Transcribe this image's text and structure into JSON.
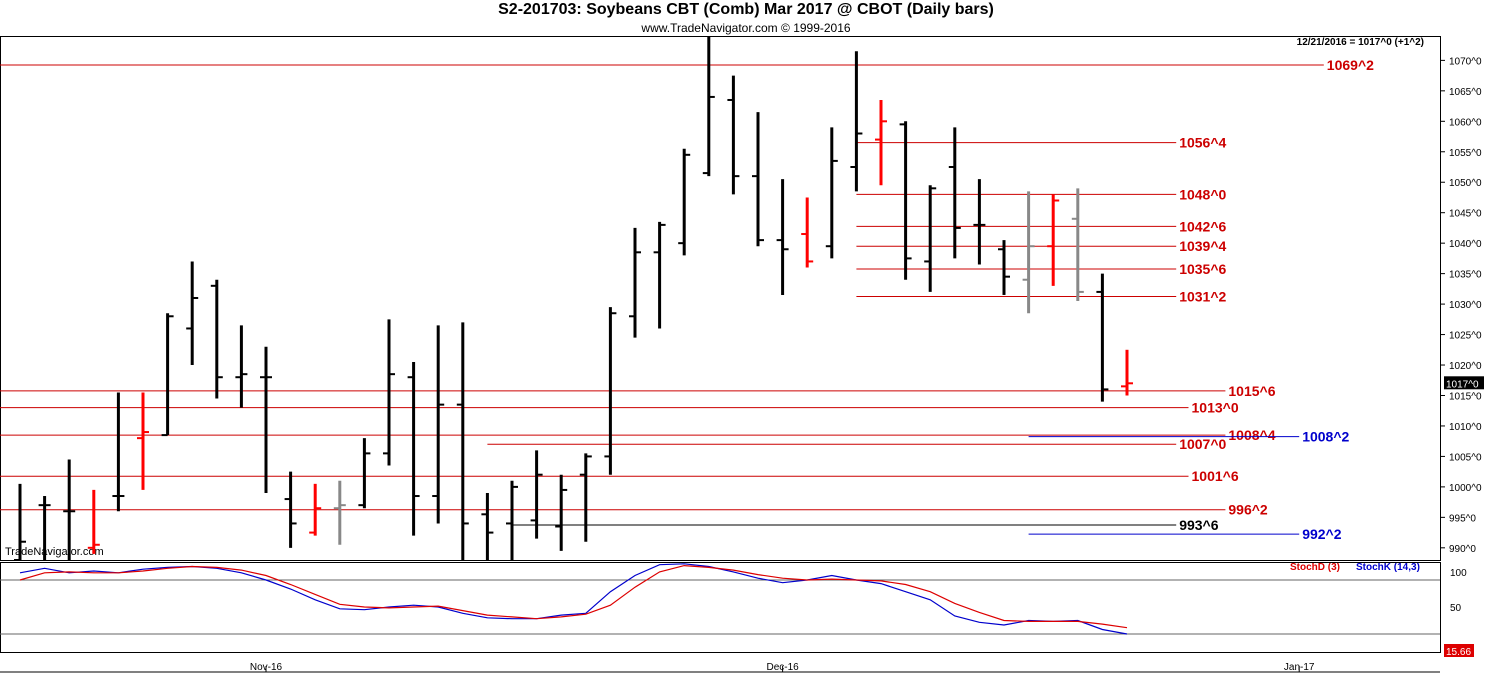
{
  "header": {
    "title": "S2-201703:  Soybeans CBT (Comb) Mar 2017 @ CBOT  (Daily bars)",
    "subtitle": "www.TradeNavigator.com © 1999-2016",
    "watermark": "TradeNavigator.com",
    "last_info": "12/21/2016 = 1017^0 (+1^2)"
  },
  "colors": {
    "price_up": "#000000",
    "price_red": "#ff0000",
    "price_gray": "#888888",
    "price_green": "#00dd00",
    "hline_red": "#cc0000",
    "hline_blue": "#0000cc",
    "stochD": "#dd0000",
    "stochK": "#0000cc"
  },
  "chart_data": {
    "type": "ohlc",
    "y_axis": {
      "min": 988,
      "max": 1074,
      "ticks": [
        "990^0",
        "995^0",
        "1000^0",
        "1005^0",
        "1010^0",
        "1015^0",
        "1020^0",
        "1025^0",
        "1030^0",
        "1035^0",
        "1040^0",
        "1045^0",
        "1050^0",
        "1055^0",
        "1060^0",
        "1065^0",
        "1070^0"
      ],
      "tick_values": [
        990,
        995,
        1000,
        1005,
        1010,
        1015,
        1020,
        1025,
        1030,
        1035,
        1040,
        1045,
        1050,
        1055,
        1060,
        1065,
        1070
      ],
      "last_price_label": "1017^0",
      "last_price": 1017
    },
    "x_axis": {
      "labels": [
        "Nov-16",
        "Dec-16",
        "Jan-17"
      ],
      "label_bar_index": [
        10,
        31,
        52
      ]
    },
    "bars": [
      {
        "o": 988,
        "h": 1000.5,
        "l": 988,
        "c": 991,
        "color": "black"
      },
      {
        "o": 997,
        "h": 998.5,
        "l": 988,
        "c": 997,
        "color": "black"
      },
      {
        "o": 996,
        "h": 1004.5,
        "l": 988,
        "c": 996,
        "color": "black"
      },
      {
        "o": 990,
        "h": 999.5,
        "l": 989,
        "c": 990.5,
        "color": "red"
      },
      {
        "o": 998.5,
        "h": 1015.5,
        "l": 996,
        "c": 998.5,
        "color": "black"
      },
      {
        "o": 1008,
        "h": 1015.5,
        "l": 999.5,
        "c": 1009,
        "color": "red"
      },
      {
        "o": 1008.5,
        "h": 1028.5,
        "l": 1008.5,
        "c": 1028,
        "color": "black"
      },
      {
        "o": 1026,
        "h": 1037,
        "l": 1020,
        "c": 1031,
        "color": "black"
      },
      {
        "o": 1033,
        "h": 1034,
        "l": 1014.5,
        "c": 1018,
        "color": "black"
      },
      {
        "o": 1018,
        "h": 1026.5,
        "l": 1013,
        "c": 1018.5,
        "color": "black"
      },
      {
        "o": 1018,
        "h": 1023,
        "l": 999,
        "c": 1018,
        "color": "black"
      },
      {
        "o": 998,
        "h": 1002.5,
        "l": 990,
        "c": 994,
        "color": "black"
      },
      {
        "o": 992.5,
        "h": 1000.5,
        "l": 992,
        "c": 996.5,
        "color": "red"
      },
      {
        "o": 996.5,
        "h": 1001,
        "l": 990.5,
        "c": 997,
        "color": "gray"
      },
      {
        "o": 997,
        "h": 1008,
        "l": 996.5,
        "c": 1005.5,
        "color": "black"
      },
      {
        "o": 1005.5,
        "h": 1027.5,
        "l": 1003.5,
        "c": 1018.5,
        "color": "black"
      },
      {
        "o": 1018,
        "h": 1020.5,
        "l": 992,
        "c": 998.5,
        "color": "black"
      },
      {
        "o": 998.5,
        "h": 1026.5,
        "l": 994,
        "c": 1013.5,
        "color": "black"
      },
      {
        "o": 1013.5,
        "h": 1027,
        "l": 988,
        "c": 994,
        "color": "black"
      },
      {
        "o": 995.5,
        "h": 999,
        "l": 988,
        "c": 992.5,
        "color": "black"
      },
      {
        "o": 994,
        "h": 1001,
        "l": 988,
        "c": 1000,
        "color": "black"
      },
      {
        "o": 994.5,
        "h": 1006,
        "l": 991.5,
        "c": 1002,
        "color": "black"
      },
      {
        "o": 993.5,
        "h": 1002,
        "l": 989.5,
        "c": 999.5,
        "color": "black"
      },
      {
        "o": 1002,
        "h": 1005.5,
        "l": 991,
        "c": 1005,
        "color": "black"
      },
      {
        "o": 1005,
        "h": 1029.5,
        "l": 1002,
        "c": 1028.5,
        "color": "black"
      },
      {
        "o": 1028,
        "h": 1042.5,
        "l": 1024.5,
        "c": 1038.5,
        "color": "black"
      },
      {
        "o": 1038.5,
        "h": 1043.5,
        "l": 1026,
        "c": 1043,
        "color": "black"
      },
      {
        "o": 1040,
        "h": 1055.5,
        "l": 1038,
        "c": 1054.5,
        "color": "black"
      },
      {
        "o": 1051.5,
        "h": 1074,
        "l": 1051,
        "c": 1064,
        "color": "black"
      },
      {
        "o": 1063.5,
        "h": 1067.5,
        "l": 1048,
        "c": 1051,
        "color": "black"
      },
      {
        "o": 1051,
        "h": 1061.5,
        "l": 1039.5,
        "c": 1040.5,
        "color": "black"
      },
      {
        "o": 1040.5,
        "h": 1050.5,
        "l": 1031.5,
        "c": 1039,
        "color": "black"
      },
      {
        "o": 1041.5,
        "h": 1047.5,
        "l": 1036,
        "c": 1037,
        "color": "red"
      },
      {
        "o": 1039.5,
        "h": 1059,
        "l": 1037.5,
        "c": 1053.5,
        "color": "black"
      },
      {
        "o": 1052.5,
        "h": 1071.5,
        "l": 1048.5,
        "c": 1058,
        "color": "black"
      },
      {
        "o": 1057,
        "h": 1063.5,
        "l": 1049.5,
        "c": 1060,
        "color": "red"
      },
      {
        "o": 1059.5,
        "h": 1060,
        "l": 1034,
        "c": 1037.5,
        "color": "black"
      },
      {
        "o": 1037,
        "h": 1049.5,
        "l": 1032,
        "c": 1049,
        "color": "black"
      },
      {
        "o": 1052.5,
        "h": 1059,
        "l": 1037.5,
        "c": 1042.5,
        "color": "black"
      },
      {
        "o": 1043,
        "h": 1050.5,
        "l": 1036.5,
        "c": 1043,
        "color": "black"
      },
      {
        "o": 1039,
        "h": 1040.5,
        "l": 1031.5,
        "c": 1034.5,
        "color": "black"
      },
      {
        "o": 1034,
        "h": 1048.5,
        "l": 1028.5,
        "c": 1039.5,
        "color": "gray"
      },
      {
        "o": 1039.5,
        "h": 1048,
        "l": 1033,
        "c": 1047,
        "color": "red"
      },
      {
        "o": 1044,
        "h": 1049,
        "l": 1030.5,
        "c": 1032,
        "color": "gray"
      },
      {
        "o": 1032,
        "h": 1035,
        "l": 1014,
        "c": 1016,
        "color": "black"
      },
      {
        "o": 1016.5,
        "h": 1022.5,
        "l": 1015,
        "c": 1017,
        "color": "red"
      }
    ],
    "horizontal_lines": [
      {
        "label": "1069^2",
        "value": 1069.25,
        "color": "red",
        "from_bar": -1,
        "to_bar": 53
      },
      {
        "label": "1056^4",
        "value": 1056.5,
        "color": "red",
        "from_bar": 34,
        "to_bar": 47
      },
      {
        "label": "1048^0",
        "value": 1048,
        "color": "red",
        "from_bar": 34,
        "to_bar": 47
      },
      {
        "label": "1042^6",
        "value": 1042.75,
        "color": "red",
        "from_bar": 34,
        "to_bar": 47
      },
      {
        "label": "1039^4",
        "value": 1039.5,
        "color": "red",
        "from_bar": 34,
        "to_bar": 47
      },
      {
        "label": "1035^6",
        "value": 1035.75,
        "color": "red",
        "from_bar": 34,
        "to_bar": 47
      },
      {
        "label": "1031^2",
        "value": 1031.25,
        "color": "red",
        "from_bar": 34,
        "to_bar": 47
      },
      {
        "label": "1015^6",
        "value": 1015.75,
        "color": "red",
        "from_bar": -1,
        "to_bar": 49
      },
      {
        "label": "1013^0",
        "value": 1013,
        "color": "red",
        "from_bar": -1,
        "to_bar": 47.5
      },
      {
        "label": "1008^4",
        "value": 1008.5,
        "color": "red",
        "from_bar": -1,
        "to_bar": 49
      },
      {
        "label": "1007^0",
        "value": 1007,
        "color": "red",
        "from_bar": 19,
        "to_bar": 47
      },
      {
        "label": "1001^6",
        "value": 1001.75,
        "color": "red",
        "from_bar": -1,
        "to_bar": 47.5
      },
      {
        "label": "996^2",
        "value": 996.25,
        "color": "red",
        "from_bar": -1,
        "to_bar": 49
      },
      {
        "label": "993^6",
        "value": 993.75,
        "color": "black",
        "from_bar": 20,
        "to_bar": 47
      },
      {
        "label": "1008^2",
        "value": 1008.25,
        "color": "blue",
        "from_bar": 41,
        "to_bar": 52
      },
      {
        "label": "992^2",
        "value": 992.25,
        "color": "blue",
        "from_bar": 41,
        "to_bar": 52
      }
    ],
    "stochastic": {
      "legend": [
        "StochD (3)",
        "StochK (14,3)"
      ],
      "ticks": [
        "100",
        "50"
      ],
      "tick_values": [
        100,
        50
      ],
      "ref_lines": [
        80,
        20
      ],
      "last_value_label": "15.66",
      "stochK": [
        88,
        93,
        88,
        90,
        88,
        92,
        94,
        95,
        93,
        88,
        80,
        70,
        58,
        48,
        47,
        50,
        52,
        50,
        43,
        38,
        37,
        37,
        41,
        43,
        67,
        85,
        97,
        98,
        95,
        89,
        82,
        77,
        80,
        85,
        80,
        76,
        67,
        58,
        40,
        33,
        30,
        35,
        34,
        35,
        25,
        20
      ],
      "stochD": [
        80,
        88,
        89,
        88,
        88,
        90,
        93,
        95,
        94,
        91,
        85,
        75,
        64,
        53,
        50,
        49,
        50,
        51,
        46,
        41,
        39,
        37,
        39,
        42,
        52,
        72,
        89,
        96,
        94,
        91,
        86,
        82,
        80,
        81,
        80,
        79,
        75,
        67,
        54,
        44,
        35,
        34,
        34,
        34,
        31,
        27
      ]
    }
  }
}
